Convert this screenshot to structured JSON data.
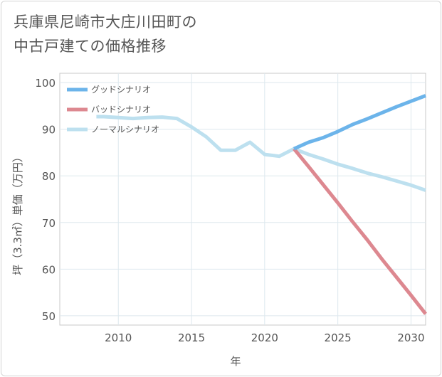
{
  "title_lines": [
    "兵庫県尼崎市大庄川田町の",
    "中古戸建ての価格推移"
  ],
  "chart_data": {
    "type": "line",
    "xlabel": "年",
    "ylabel": "坪（3.3㎡）単価（万円）",
    "xlim": [
      2006,
      2031
    ],
    "ylim": [
      48,
      102
    ],
    "x_ticks": [
      2010,
      2015,
      2020,
      2025,
      2030
    ],
    "y_ticks": [
      50,
      60,
      70,
      80,
      90,
      100
    ],
    "grid": true,
    "legend_position": "top-left",
    "series": [
      {
        "name": "グッドシナリオ",
        "color": "#6cb4ea",
        "x": [
          2022,
          2023,
          2024,
          2025,
          2026,
          2027,
          2028,
          2029,
          2030,
          2031
        ],
        "y": [
          85.8,
          87.2,
          88.2,
          89.5,
          91.0,
          92.2,
          93.5,
          94.8,
          96.0,
          97.2
        ]
      },
      {
        "name": "バッドシナリオ",
        "color": "#dd8890",
        "x": [
          2022,
          2023,
          2024,
          2025,
          2026,
          2027,
          2028,
          2029,
          2030,
          2031
        ],
        "y": [
          85.8,
          82.0,
          78.1,
          74.2,
          70.2,
          66.3,
          62.2,
          58.3,
          54.4,
          50.4
        ]
      },
      {
        "name": "ノーマルシナリオ",
        "color": "#bde0ef",
        "x": [
          2008.5,
          2009,
          2010,
          2011,
          2012,
          2013,
          2014,
          2015,
          2016,
          2017,
          2018,
          2019,
          2020,
          2021,
          2022,
          2023,
          2024,
          2025,
          2026,
          2027,
          2028,
          2029,
          2030,
          2031
        ],
        "y": [
          92.7,
          92.7,
          92.5,
          92.3,
          92.5,
          92.6,
          92.3,
          90.5,
          88.4,
          85.5,
          85.5,
          87.2,
          84.6,
          84.2,
          85.8,
          84.6,
          83.6,
          82.5,
          81.6,
          80.6,
          79.8,
          78.9,
          78.0,
          76.9
        ]
      }
    ]
  }
}
